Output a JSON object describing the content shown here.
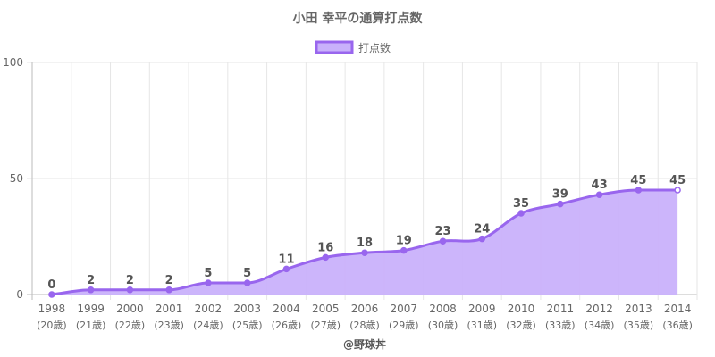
{
  "title": "小田 幸平の通算打点数",
  "credit": "@野球丼",
  "chart_data": {
    "type": "area",
    "title": "小田 幸平の通算打点数",
    "legend": {
      "position": "top",
      "entries": [
        "打点数"
      ]
    },
    "categories": [
      "1998",
      "1999",
      "2000",
      "2001",
      "2002",
      "2003",
      "2004",
      "2005",
      "2006",
      "2007",
      "2008",
      "2009",
      "2010",
      "2011",
      "2012",
      "2013",
      "2014"
    ],
    "ages": [
      "(20歳)",
      "(21歳)",
      "(22歳)",
      "(23歳)",
      "(24歳)",
      "(25歳)",
      "(26歳)",
      "(27歳)",
      "(28歳)",
      "(29歳)",
      "(30歳)",
      "(31歳)",
      "(32歳)",
      "(33歳)",
      "(34歳)",
      "(35歳)",
      "(36歳)"
    ],
    "series": [
      {
        "name": "打点数",
        "values": [
          0,
          2,
          2,
          2,
          5,
          5,
          11,
          16,
          18,
          19,
          23,
          24,
          35,
          39,
          43,
          45,
          45
        ]
      }
    ],
    "yticks": [
      0,
      50,
      100
    ],
    "ylim": [
      0,
      100
    ],
    "grid": true,
    "colors": {
      "line": "#9966ee",
      "fill": "#c9b1fb",
      "grid": "#e6e6e6",
      "axis": "#bbbbbb"
    }
  }
}
